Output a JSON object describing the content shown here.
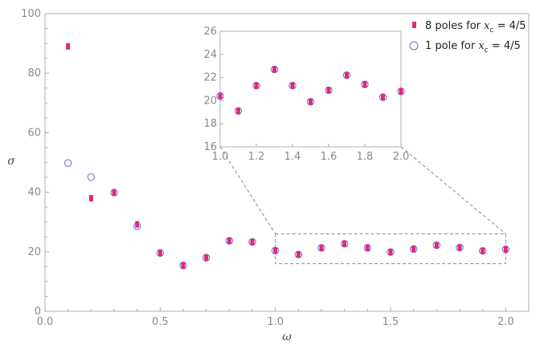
{
  "chart_data": [
    {
      "type": "scatter",
      "xlabel": "ω",
      "ylabel": "σ",
      "xlim": [
        0,
        2.1
      ],
      "ylim": [
        0,
        100
      ],
      "xticks": [
        "0.0",
        "0.5",
        "1.0",
        "1.5",
        "2.0"
      ],
      "yticks": [
        "0",
        "20",
        "40",
        "60",
        "80",
        "100"
      ],
      "legend_position": "top-right",
      "series": [
        {
          "name": "8 poles for x_c = 4/5",
          "marker": "filled-square",
          "color": "#e0287a",
          "x": [
            0.1,
            0.2,
            0.3,
            0.4,
            0.5,
            0.6,
            0.7,
            0.8,
            0.9,
            1.0,
            1.1,
            1.2,
            1.3,
            1.4,
            1.5,
            1.6,
            1.7,
            1.8,
            1.9,
            2.0
          ],
          "y": [
            89.0,
            38.0,
            39.8,
            29.2,
            19.6,
            15.4,
            18.0,
            23.7,
            23.3,
            20.4,
            19.1,
            21.3,
            22.7,
            21.3,
            19.9,
            20.9,
            22.2,
            21.4,
            20.3,
            20.8
          ]
        },
        {
          "name": "1 pole for x_c = 4/5",
          "marker": "open-circle",
          "color": "#6a6ad0",
          "x": [
            0.1,
            0.2,
            0.3,
            0.4,
            0.5,
            0.6,
            0.7,
            0.8,
            0.9,
            1.0,
            1.1,
            1.2,
            1.3,
            1.4,
            1.5,
            1.6,
            1.7,
            1.8,
            1.9,
            2.0
          ],
          "y": [
            49.8,
            45.1,
            39.9,
            28.6,
            19.6,
            15.4,
            18.0,
            23.7,
            23.3,
            20.4,
            19.1,
            21.3,
            22.7,
            21.3,
            19.9,
            20.9,
            22.2,
            21.4,
            20.3,
            20.8
          ]
        }
      ]
    },
    {
      "type": "scatter",
      "role": "inset",
      "xlim": [
        1.0,
        2.0
      ],
      "ylim": [
        16,
        26
      ],
      "xticks": [
        "1.0",
        "1.2",
        "1.4",
        "1.6",
        "1.8",
        "2.0"
      ],
      "yticks": [
        "16",
        "18",
        "20",
        "22",
        "24",
        "26"
      ],
      "zoom_region": {
        "x": [
          1.0,
          2.0
        ],
        "y": [
          16,
          26
        ]
      }
    }
  ],
  "legend": {
    "entries": [
      {
        "prefix": "8 poles for ",
        "var": "x",
        "sub": "c",
        "suffix": " = 4/5"
      },
      {
        "prefix": "1 pole for ",
        "var": "x",
        "sub": "c",
        "suffix": " = 4/5"
      }
    ]
  }
}
